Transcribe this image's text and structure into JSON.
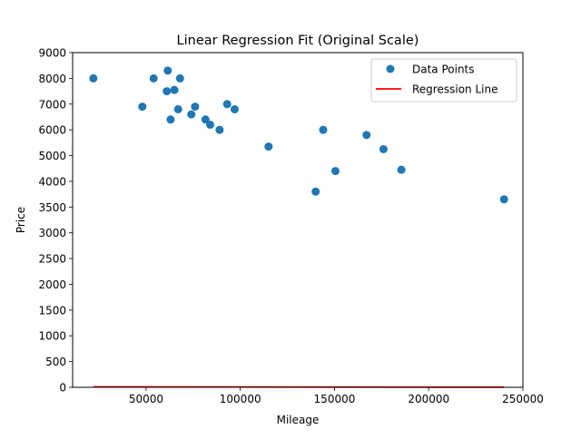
{
  "chart_data": {
    "type": "scatter",
    "title": "Linear Regression Fit (Original Scale)",
    "xlabel": "Mileage",
    "ylabel": "Price",
    "xlim": [
      11000,
      250000
    ],
    "x_ticks": [
      {
        "value": 50000,
        "label": "50000"
      },
      {
        "value": 100000,
        "label": "100000"
      },
      {
        "value": 150000,
        "label": "150000"
      },
      {
        "value": 200000,
        "label": "200000"
      },
      {
        "value": 250000,
        "label": "250000"
      }
    ],
    "y_ticks": [
      {
        "label": "0",
        "value": 0
      },
      {
        "label": "500",
        "value": 500
      },
      {
        "label": "1000",
        "value": 1000
      },
      {
        "label": "1500",
        "value": 1500
      },
      {
        "label": "2000",
        "value": 2000
      },
      {
        "label": "2500",
        "value": 2500
      },
      {
        "label": "3000",
        "value": 3000
      },
      {
        "label": "3500",
        "value": 3500
      },
      {
        "label": "4000",
        "value": 4000
      },
      {
        "label": "5000",
        "value": 5000
      },
      {
        "label": "6000",
        "value": 6000
      },
      {
        "label": "7000",
        "value": 7000
      },
      {
        "label": "8000",
        "value": 8000
      },
      {
        "label": "9000",
        "value": 9000
      }
    ],
    "series": [
      {
        "name": "Data Points",
        "kind": "scatter",
        "color": "#1f77b4",
        "points": [
          {
            "x": 22000,
            "y": 8000
          },
          {
            "x": 48000,
            "y": 6900
          },
          {
            "x": 54000,
            "y": 8000
          },
          {
            "x": 61000,
            "y": 7500
          },
          {
            "x": 61500,
            "y": 8300
          },
          {
            "x": 63000,
            "y": 6400
          },
          {
            "x": 65000,
            "y": 7550
          },
          {
            "x": 67000,
            "y": 6800
          },
          {
            "x": 68000,
            "y": 8000
          },
          {
            "x": 74000,
            "y": 6600
          },
          {
            "x": 76000,
            "y": 6900
          },
          {
            "x": 81500,
            "y": 6400
          },
          {
            "x": 84000,
            "y": 6200
          },
          {
            "x": 89000,
            "y": 6000
          },
          {
            "x": 93000,
            "y": 7000
          },
          {
            "x": 97000,
            "y": 6800
          },
          {
            "x": 115000,
            "y": 5350
          },
          {
            "x": 140000,
            "y": 3800
          },
          {
            "x": 144000,
            "y": 6000
          },
          {
            "x": 150500,
            "y": 4400
          },
          {
            "x": 167000,
            "y": 5800
          },
          {
            "x": 176000,
            "y": 5250
          },
          {
            "x": 185500,
            "y": 4450
          },
          {
            "x": 240000,
            "y": 3650
          }
        ]
      },
      {
        "name": "Regression Line",
        "kind": "line",
        "color": "#ff0000",
        "points": [
          {
            "x": 22000,
            "y": 8
          },
          {
            "x": 240000,
            "y": 2
          }
        ]
      }
    ],
    "legend_position": "top-right",
    "grid": false
  }
}
